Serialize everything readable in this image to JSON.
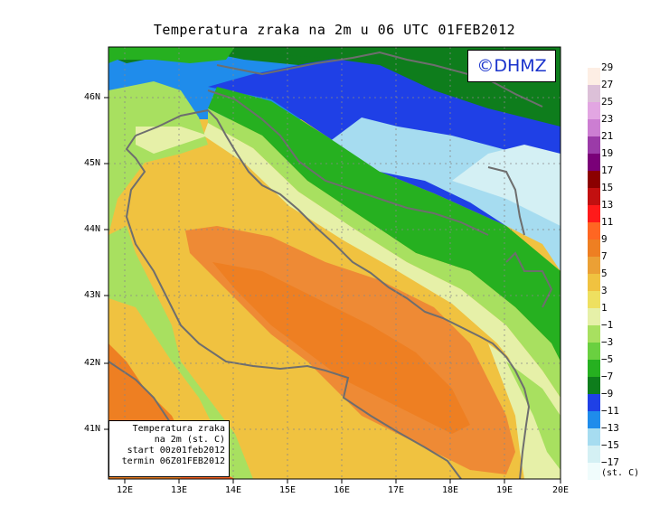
{
  "title": "Temperatura zraka na 2m u 06 UTC 01FEB2012",
  "logo_text": "©DHMZ",
  "info_box": {
    "line1": "Temperatura zraka",
    "line2": "na 2m (st. C)",
    "line3": "start 00z01feb2012",
    "line4": "termin 06Z01FEB2012"
  },
  "lat_labels": [
    "46N",
    "45N",
    "44N",
    "43N",
    "42N",
    "41N"
  ],
  "lon_labels": [
    "12E",
    "13E",
    "14E",
    "15E",
    "16E",
    "17E",
    "18E",
    "19E",
    "20E"
  ],
  "colorbar": {
    "units": "(st. C)",
    "labels": [
      "29",
      "27",
      "25",
      "23",
      "21",
      "19",
      "17",
      "15",
      "13",
      "11",
      "9",
      "7",
      "5",
      "3",
      "1",
      "−1",
      "−3",
      "−5",
      "−7",
      "−9",
      "−11",
      "−13",
      "−15",
      "−17"
    ],
    "colors": [
      "#fdeee4",
      "#dcc0d8",
      "#e2a6e2",
      "#cc7ed2",
      "#9b3ba8",
      "#7a0078",
      "#8b0000",
      "#c21010",
      "#ff1a1a",
      "#ff6622",
      "#ee7f22",
      "#eba035",
      "#f0c240",
      "#eee060",
      "#e6f0a8",
      "#a8e060",
      "#6ad040",
      "#26b020",
      "#0e7d1c",
      "#1f40e6",
      "#1f8ceb",
      "#a6dcf0",
      "#d4f0f4",
      "#f0fcfc"
    ]
  },
  "colors": {
    "warm_sea": "#ee8a35",
    "coast_line": "#6e6e6e",
    "logo_text": "#1a33cc"
  }
}
